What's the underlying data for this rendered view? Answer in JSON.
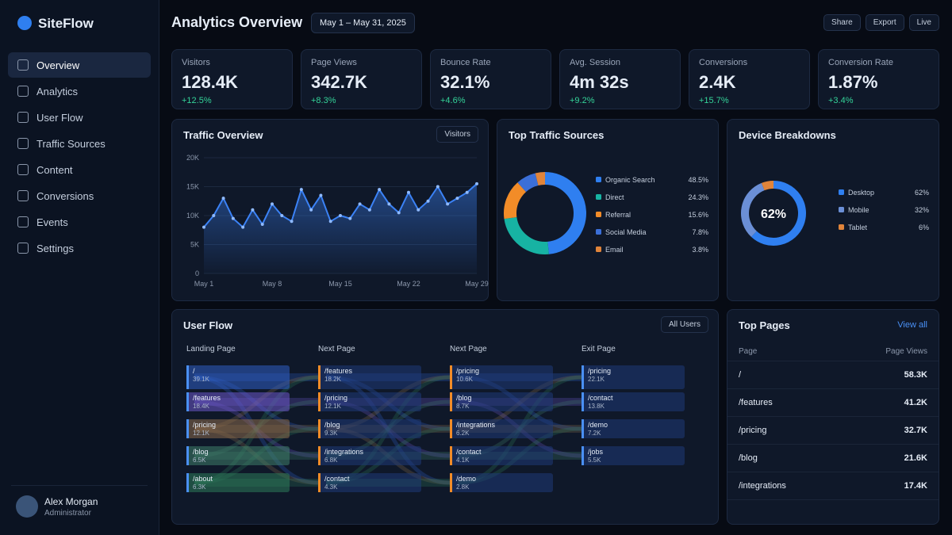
{
  "sidebar": {
    "brand": "SiteFlow",
    "nav": [
      "Overview",
      "Analytics",
      "User Flow",
      "Traffic Sources",
      "Content",
      "Conversions",
      "Events",
      "Settings"
    ],
    "user": {
      "name": "Alex Morgan",
      "role": "Administrator"
    }
  },
  "header": {
    "title": "Analytics Overview",
    "date_range": "May 1 – May 31, 2025",
    "actions": [
      "Share",
      "Export",
      "Live"
    ]
  },
  "kpis": [
    {
      "label": "Visitors",
      "value": "128.4K",
      "change": "+12.5%"
    },
    {
      "label": "Page Views",
      "value": "342.7K",
      "change": "+8.3%"
    },
    {
      "label": "Bounce Rate",
      "value": "32.1%",
      "change": "+4.6%"
    },
    {
      "label": "Avg. Session",
      "value": "4m 32s",
      "change": "+9.2%"
    },
    {
      "label": "Conversions",
      "value": "2.4K",
      "change": "+15.7%"
    },
    {
      "label": "Conversion Rate",
      "value": "1.87%",
      "change": "+3.4%"
    }
  ],
  "traffic_overview": {
    "type": "line",
    "title": "Traffic Overview",
    "metric": "Visitors",
    "categories": [
      "May 1",
      null,
      null,
      null,
      null,
      null,
      null,
      "May 8",
      null,
      null,
      null,
      null,
      null,
      null,
      "May 15",
      null,
      null,
      null,
      null,
      null,
      null,
      "May 22",
      null,
      null,
      null,
      null,
      null,
      null,
      "May 29"
    ],
    "values": [
      8,
      10,
      13,
      9.5,
      8,
      11,
      8.5,
      12,
      10,
      9,
      14.5,
      11,
      13.5,
      9,
      10,
      9.5,
      12,
      11,
      14.5,
      12,
      10.5,
      14,
      11,
      12.5,
      15,
      12,
      13,
      14,
      15.5
    ],
    "ylim": [
      0,
      20
    ],
    "yticks": [
      0,
      {
        "value": 5,
        "label": "5K"
      },
      {
        "value": 10,
        "label": "10K"
      },
      {
        "value": 15,
        "label": "15K"
      },
      {
        "value": 20,
        "label": "20K"
      }
    ],
    "color": "#3b82f6",
    "grid": true
  },
  "top_sources": {
    "type": "donut",
    "title": "Top Traffic Sources",
    "categories": [
      "Organic Search",
      "Direct",
      "Referral",
      "Social Media",
      "Email"
    ],
    "values": [
      48.5,
      24.3,
      15.6,
      7.8,
      3.8
    ],
    "value_labels": [
      "48.5%",
      "24.3%",
      "15.6%",
      "7.8%",
      "3.8%"
    ],
    "colors": [
      "#2f7ff0",
      "#17b3a3",
      "#f28c28",
      "#3b6fd8",
      "#e0843a"
    ]
  },
  "devices": {
    "type": "donut",
    "title": "Device Breakdowns",
    "categories": [
      "Desktop",
      "Mobile",
      "Tablet"
    ],
    "values": [
      62,
      32,
      6
    ],
    "value_labels": [
      "62%",
      "32%",
      "6%"
    ],
    "center_label": "62%",
    "colors": [
      "#2f7ff0",
      "#6b8fd6",
      "#e0843a"
    ]
  },
  "user_flow": {
    "title": "User Flow",
    "filter": "All Users",
    "columns": [
      {
        "title": "Landing Page",
        "nodes": [
          {
            "label": "/",
            "value": "39.1K"
          },
          {
            "label": "/features",
            "value": "18.4K"
          },
          {
            "label": "/pricing",
            "value": "12.1K"
          },
          {
            "label": "/blog",
            "value": "6.5K"
          },
          {
            "label": "/about",
            "value": "6.3K"
          }
        ]
      },
      {
        "title": "Next Page",
        "nodes": [
          {
            "label": "/features",
            "value": "18.2K"
          },
          {
            "label": "/pricing",
            "value": "12.1K"
          },
          {
            "label": "/blog",
            "value": "9.3K"
          },
          {
            "label": "/integrations",
            "value": "6.8K"
          },
          {
            "label": "/contact",
            "value": "4.3K"
          }
        ]
      },
      {
        "title": "Next Page",
        "nodes": [
          {
            "label": "/pricing",
            "value": "10.6K"
          },
          {
            "label": "/blog",
            "value": "8.7K"
          },
          {
            "label": "/integrations",
            "value": "6.2K"
          },
          {
            "label": "/contact",
            "value": "4.1K"
          },
          {
            "label": "/demo",
            "value": "2.8K"
          }
        ]
      },
      {
        "title": "Exit Page",
        "nodes": [
          {
            "label": "/pricing",
            "value": "22.1K"
          },
          {
            "label": "/contact",
            "value": "13.8K"
          },
          {
            "label": "/demo",
            "value": "7.2K"
          },
          {
            "label": "/jobs",
            "value": "5.5K"
          }
        ]
      }
    ]
  },
  "top_pages": {
    "title": "Top Pages",
    "link": "View all",
    "columns": [
      "Page",
      "Page Views"
    ],
    "rows": [
      [
        "/",
        "58.3K"
      ],
      [
        "/features",
        "41.2K"
      ],
      [
        "/pricing",
        "32.7K"
      ],
      [
        "/blog",
        "21.6K"
      ],
      [
        "/integrations",
        "17.4K"
      ]
    ]
  }
}
